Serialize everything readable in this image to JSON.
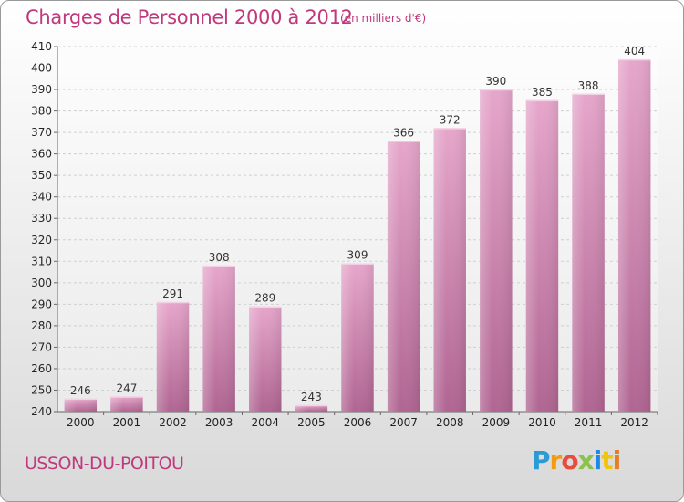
{
  "header": {
    "title": "Charges de Personnel 2000 à 2012",
    "unit": "(en milliers d'€)"
  },
  "footer": {
    "commune": "USSON-DU-POITOU",
    "logo": [
      "P",
      "r",
      "o",
      "x",
      "i",
      "t",
      "i"
    ]
  },
  "colors": {
    "bar_top": "#e6a6cb",
    "bar_bottom": "#b06592",
    "title": "#c0387d"
  },
  "chart_data": {
    "type": "bar",
    "title": "Charges de Personnel 2000 à 2012",
    "categories": [
      "2000",
      "2001",
      "2002",
      "2003",
      "2004",
      "2005",
      "2006",
      "2007",
      "2008",
      "2009",
      "2010",
      "2011",
      "2012"
    ],
    "values": [
      246,
      247,
      291,
      308,
      289,
      243,
      309,
      366,
      372,
      390,
      385,
      388,
      404
    ],
    "ylim": [
      240,
      410
    ],
    "yticks": [
      240,
      250,
      260,
      270,
      280,
      290,
      300,
      310,
      320,
      330,
      340,
      350,
      360,
      370,
      380,
      390,
      400,
      410
    ],
    "grid": true,
    "legend": "none"
  }
}
